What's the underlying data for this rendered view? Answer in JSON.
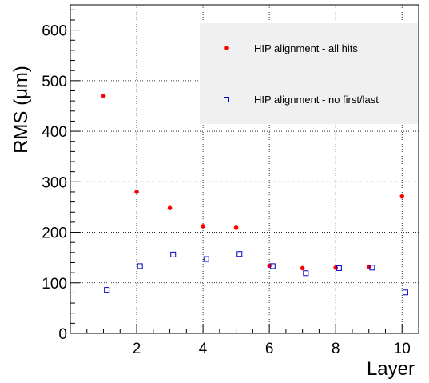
{
  "chart_data": {
    "type": "scatter",
    "xlabel": "Layer",
    "ylabel": "RMS (μm)",
    "xlim": [
      0,
      10.5
    ],
    "ylim": [
      0,
      650
    ],
    "x_ticks": [
      "2",
      "4",
      "6",
      "8",
      "10"
    ],
    "y_ticks": [
      "0",
      "100",
      "200",
      "300",
      "400",
      "500",
      "600"
    ],
    "grid": true,
    "legend_position": "top-right",
    "series": [
      {
        "name": "HIP alignment - all hits",
        "marker": "filled-circle",
        "color": "#ff0000",
        "points": [
          {
            "x": 1,
            "y": 470
          },
          {
            "x": 2,
            "y": 280
          },
          {
            "x": 3,
            "y": 248
          },
          {
            "x": 4,
            "y": 212
          },
          {
            "x": 5,
            "y": 209
          },
          {
            "x": 6,
            "y": 134
          },
          {
            "x": 7,
            "y": 129
          },
          {
            "x": 8,
            "y": 130
          },
          {
            "x": 9,
            "y": 132
          },
          {
            "x": 10,
            "y": 271
          }
        ]
      },
      {
        "name": "HIP alignment - no first/last",
        "marker": "open-square",
        "color": "#0000cc",
        "points": [
          {
            "x": 1.1,
            "y": 86
          },
          {
            "x": 2.1,
            "y": 133
          },
          {
            "x": 3.1,
            "y": 156
          },
          {
            "x": 4.1,
            "y": 147
          },
          {
            "x": 5.1,
            "y": 157
          },
          {
            "x": 6.1,
            "y": 133
          },
          {
            "x": 7.1,
            "y": 119
          },
          {
            "x": 8.1,
            "y": 129
          },
          {
            "x": 9.1,
            "y": 130
          },
          {
            "x": 10.1,
            "y": 81
          }
        ]
      }
    ]
  }
}
